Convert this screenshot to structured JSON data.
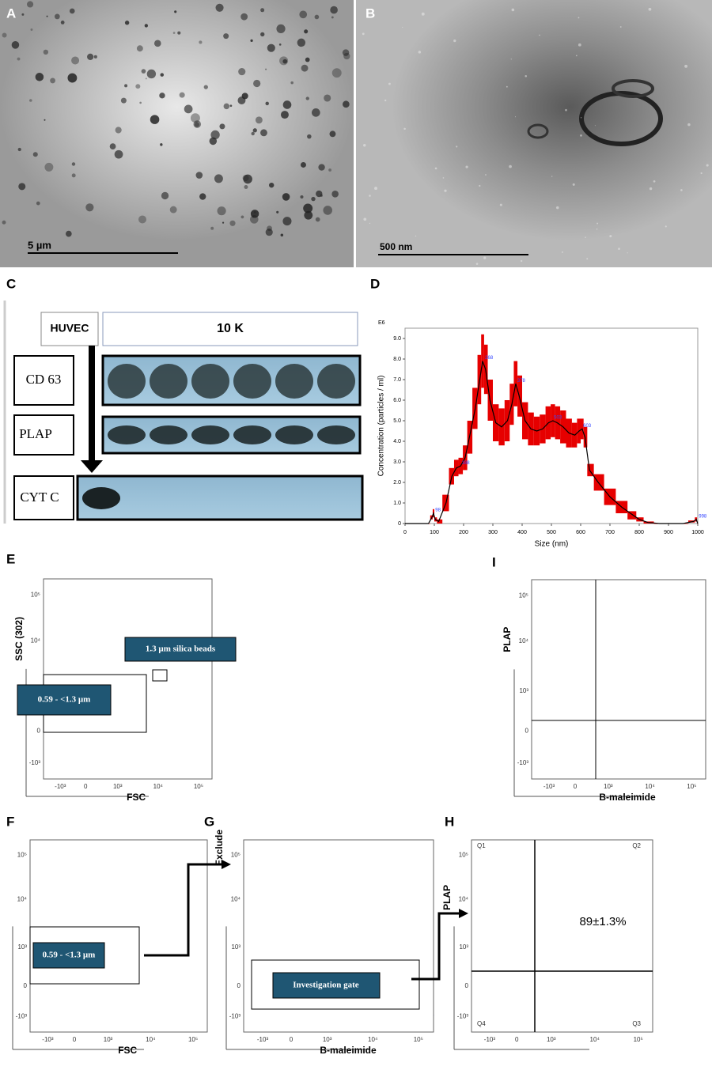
{
  "panel_labels": [
    "A",
    "B",
    "C",
    "D",
    "E",
    "F",
    "G",
    "H",
    "I"
  ],
  "micrographs": [
    {
      "scale_bar": "5 µm"
    },
    {
      "scale_bar": "500 nm"
    }
  ],
  "western_blot": {
    "cell_label": "HUVEC",
    "group_label": "10 K",
    "rows": [
      "CD 63",
      "PLAP",
      "CYT C"
    ]
  },
  "chart_data": {
    "type": "line",
    "y_unit": "E6",
    "xlabel": "Size (nm)",
    "ylabel": "Concentration (particles / ml)",
    "x": [
      0,
      80,
      92,
      97,
      103,
      115,
      140,
      160,
      175,
      190,
      205,
      220,
      240,
      255,
      265,
      275,
      290,
      310,
      330,
      350,
      365,
      378,
      390,
      410,
      430,
      450,
      470,
      490,
      505,
      520,
      540,
      560,
      580,
      595,
      605,
      615,
      630,
      660,
      700,
      740,
      780,
      800,
      830,
      870,
      950,
      985,
      995,
      1000
    ],
    "series": [
      {
        "color": "#000000",
        "error_color": "#e60000",
        "values": [
          0,
          0,
          0.3,
          0.5,
          0.2,
          0.1,
          1.0,
          2.3,
          2.7,
          2.8,
          3.2,
          4.2,
          5.6,
          7.0,
          7.9,
          7.5,
          6.0,
          4.9,
          4.7,
          5.0,
          5.8,
          6.8,
          6.2,
          5.0,
          4.6,
          4.5,
          4.6,
          4.9,
          5.0,
          4.9,
          4.7,
          4.4,
          4.3,
          4.5,
          4.6,
          4.2,
          2.6,
          2.0,
          1.3,
          0.8,
          0.4,
          0.2,
          0.05,
          0,
          0,
          0.1,
          0.2,
          0
        ],
        "error": [
          0,
          0,
          0.1,
          0.2,
          0.1,
          0.1,
          0.4,
          0.4,
          0.4,
          0.4,
          0.6,
          0.8,
          1.0,
          1.2,
          1.3,
          1.2,
          1.0,
          0.9,
          0.9,
          1.0,
          1.0,
          1.1,
          1.0,
          0.9,
          0.8,
          0.7,
          0.7,
          0.8,
          0.8,
          0.8,
          0.8,
          0.7,
          0.6,
          0.6,
          0.5,
          0.5,
          0.3,
          0.4,
          0.4,
          0.3,
          0.2,
          0.1,
          0.05,
          0,
          0,
          0.05,
          0.1,
          0
        ]
      }
    ],
    "xlim": [
      0,
      1000
    ],
    "xticks": [
      0,
      100,
      200,
      300,
      400,
      500,
      600,
      700,
      800,
      900,
      1000
    ],
    "ylim": [
      0,
      9.5
    ],
    "yticks": [
      0,
      {
        "value": 1,
        "label": "1.0"
      },
      {
        "value": 2,
        "label": "2.0"
      },
      {
        "value": 3,
        "label": "3.0"
      },
      {
        "value": 4,
        "label": "4.0"
      },
      {
        "value": 5,
        "label": "5.0"
      },
      {
        "value": 6,
        "label": "6.0"
      },
      {
        "value": 7,
        "label": "7.0"
      },
      {
        "value": 8,
        "label": "8.0"
      },
      {
        "value": 9,
        "label": "9.0"
      }
    ],
    "annotations": [
      {
        "x": 98,
        "y": 0.5,
        "text": "98"
      },
      {
        "x": 188,
        "y": 2.8,
        "text": "188"
      },
      {
        "x": 268,
        "y": 7.9,
        "text": "268"
      },
      {
        "x": 378,
        "y": 6.8,
        "text": "378"
      },
      {
        "x": 503,
        "y": 5.0,
        "text": "503"
      },
      {
        "x": 603,
        "y": 4.6,
        "text": "603"
      },
      {
        "x": 998,
        "y": 0.2,
        "text": "998"
      }
    ]
  },
  "flow": {
    "x_ticks": [
      "-10³",
      "0",
      "10³",
      "10⁴",
      "10⁵"
    ],
    "y_ticks": [
      "10⁵",
      "10⁴",
      "10³",
      "0",
      "-10³"
    ],
    "plots": {
      "E": {
        "x_label": "FSC",
        "y_label": "SSC (302)",
        "gates": [
          "1.3 µm silica beads",
          "0.59 - <1.3 µm"
        ]
      },
      "F": {
        "x_label": "FSC",
        "gates": [
          "0.59 - <1.3 µm"
        ]
      },
      "G": {
        "x_label": "B-maleimide",
        "y_label": "Exclude",
        "gates": [
          "Investigation gate"
        ]
      },
      "H": {
        "y_label": "PLAP",
        "quadrants": [
          "Q1",
          "Q2",
          "Q3",
          "Q4"
        ],
        "percent": "89±1.3%"
      },
      "I": {
        "x_label": "B-maleimide",
        "y_label": "PLAP"
      }
    }
  }
}
